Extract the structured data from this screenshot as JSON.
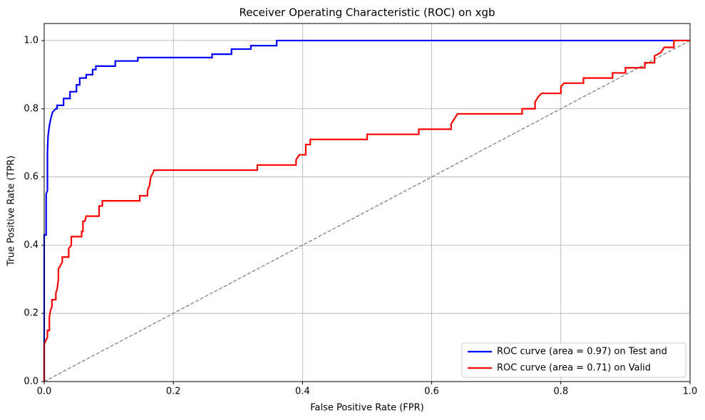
{
  "chart_data": {
    "type": "line",
    "title": "Receiver Operating Characteristic (ROC) on xgb",
    "x_label": "False Positive Rate (FPR)",
    "y_label": "True Positive Rate (TPR)",
    "xlim": [
      0,
      1
    ],
    "ylim": [
      0,
      1.05
    ],
    "xticks": [
      {
        "value": 0,
        "label": "0.0"
      },
      0.2,
      0.4,
      0.6,
      0.8,
      {
        "value": 1,
        "label": "1.0"
      }
    ],
    "yticks": [
      {
        "value": 0,
        "label": "0.0"
      },
      0.2,
      0.4,
      0.6,
      0.8,
      {
        "value": 1,
        "label": "1.0"
      }
    ],
    "grid": true,
    "legend": "lower right",
    "series": [
      {
        "name": "ROC curve (area = 0.97) on Test and",
        "color": "#0000ff",
        "x": [
          0,
          0,
          0.003,
          0.003,
          0.005,
          0.005,
          0.006,
          0.008,
          0.01,
          0.013,
          0.018,
          0.02,
          0.02,
          0.03,
          0.03,
          0.04,
          0.04,
          0.05,
          0.05,
          0.055,
          0.055,
          0.065,
          0.065,
          0.075,
          0.075,
          0.08,
          0.08,
          0.11,
          0.11,
          0.145,
          0.145,
          0.26,
          0.26,
          0.29,
          0.29,
          0.32,
          0.32,
          0.36,
          0.36,
          1
        ],
        "values": [
          0,
          0.43,
          0.43,
          0.55,
          0.56,
          0.67,
          0.72,
          0.75,
          0.77,
          0.79,
          0.8,
          0.8,
          0.81,
          0.81,
          0.83,
          0.83,
          0.85,
          0.85,
          0.87,
          0.87,
          0.89,
          0.89,
          0.9,
          0.9,
          0.915,
          0.915,
          0.925,
          0.925,
          0.94,
          0.94,
          0.95,
          0.95,
          0.96,
          0.96,
          0.975,
          0.975,
          0.985,
          0.985,
          1,
          1
        ]
      },
      {
        "name": "ROC curve (area = 0.71) on Valid",
        "color": "#ff0000",
        "x": [
          0,
          0,
          0.005,
          0.005,
          0.008,
          0.008,
          0.01,
          0.012,
          0.012,
          0.018,
          0.018,
          0.02,
          0.022,
          0.022,
          0.028,
          0.028,
          0.038,
          0.038,
          0.042,
          0.042,
          0.058,
          0.058,
          0.06,
          0.06,
          0.063,
          0.065,
          0.085,
          0.085,
          0.09,
          0.09,
          0.148,
          0.148,
          0.16,
          0.16,
          0.163,
          0.165,
          0.168,
          0.17,
          0.33,
          0.33,
          0.39,
          0.39,
          0.395,
          0.405,
          0.405,
          0.412,
          0.412,
          0.5,
          0.5,
          0.58,
          0.58,
          0.63,
          0.63,
          0.635,
          0.64,
          0.74,
          0.74,
          0.76,
          0.76,
          0.765,
          0.77,
          0.8,
          0.8,
          0.805,
          0.835,
          0.835,
          0.88,
          0.88,
          0.9,
          0.9,
          0.93,
          0.93,
          0.945,
          0.945,
          0.955,
          0.96,
          0.975,
          0.975,
          1
        ],
        "values": [
          0,
          0.11,
          0.13,
          0.15,
          0.15,
          0.19,
          0.21,
          0.22,
          0.24,
          0.24,
          0.26,
          0.27,
          0.3,
          0.33,
          0.35,
          0.365,
          0.365,
          0.39,
          0.4,
          0.425,
          0.425,
          0.44,
          0.44,
          0.47,
          0.47,
          0.485,
          0.485,
          0.515,
          0.515,
          0.53,
          0.53,
          0.545,
          0.545,
          0.56,
          0.575,
          0.6,
          0.61,
          0.62,
          0.62,
          0.635,
          0.635,
          0.65,
          0.665,
          0.665,
          0.695,
          0.695,
          0.71,
          0.71,
          0.725,
          0.725,
          0.74,
          0.74,
          0.755,
          0.77,
          0.785,
          0.785,
          0.8,
          0.8,
          0.82,
          0.835,
          0.845,
          0.845,
          0.865,
          0.875,
          0.875,
          0.89,
          0.89,
          0.905,
          0.905,
          0.92,
          0.92,
          0.935,
          0.935,
          0.955,
          0.965,
          0.98,
          0.98,
          1,
          1
        ]
      }
    ],
    "reference_line": {
      "x": [
        0,
        1
      ],
      "values": [
        0,
        1
      ],
      "color": "#808080"
    }
  }
}
